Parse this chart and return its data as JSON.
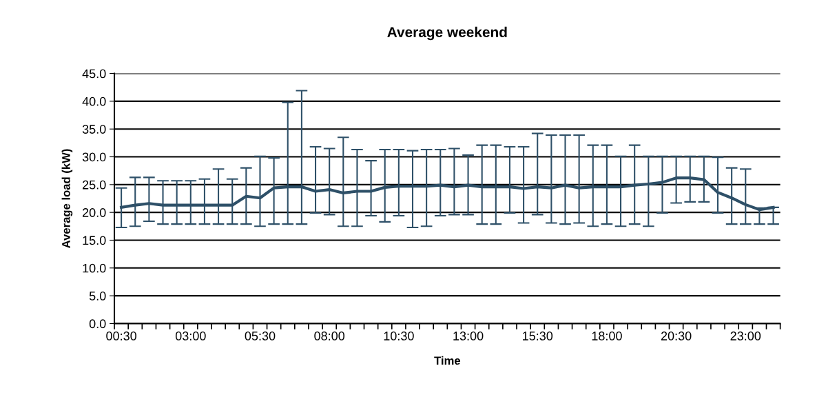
{
  "chart_data": {
    "type": "line",
    "title": "Average weekend",
    "xlabel": "Time",
    "ylabel": "Average load (kW)",
    "categories": [
      "00:30",
      null,
      null,
      null,
      null,
      "03:00",
      null,
      null,
      null,
      null,
      "05:30",
      null,
      null,
      null,
      null,
      "08:00",
      null,
      null,
      null,
      null,
      "10:30",
      null,
      null,
      null,
      null,
      "13:00",
      null,
      null,
      null,
      null,
      "15:30",
      null,
      null,
      null,
      null,
      "18:00",
      null,
      null,
      null,
      null,
      "20:30",
      null,
      null,
      null,
      null,
      "23:00",
      null,
      null
    ],
    "series": [
      {
        "color": "#2e5068",
        "values": [
          20.9,
          21.3,
          21.6,
          21.3,
          21.3,
          21.3,
          21.3,
          21.3,
          21.3,
          22.9,
          22.6,
          24.4,
          24.6,
          24.6,
          23.8,
          24.1,
          23.5,
          23.8,
          23.8,
          24.5,
          24.7,
          24.7,
          24.7,
          24.9,
          24.6,
          24.9,
          24.6,
          24.6,
          24.6,
          24.3,
          24.6,
          24.4,
          24.9,
          24.4,
          24.6,
          24.6,
          24.6,
          24.9,
          25.1,
          25.4,
          26.2,
          26.2,
          25.9,
          23.6,
          22.6,
          21.4,
          20.5,
          20.9
        ],
        "errors": [
          [
            17.3,
            24.4
          ],
          [
            17.5,
            26.3
          ],
          [
            18.4,
            26.3
          ],
          [
            17.9,
            25.7
          ],
          [
            17.9,
            25.7
          ],
          [
            17.9,
            25.7
          ],
          [
            17.9,
            26.0
          ],
          [
            17.9,
            27.8
          ],
          [
            17.9,
            26.0
          ],
          [
            17.9,
            28.0
          ],
          [
            17.5,
            30.1
          ],
          [
            17.9,
            29.8
          ],
          [
            17.9,
            39.8
          ],
          [
            17.9,
            41.9
          ],
          [
            19.9,
            31.8
          ],
          [
            19.6,
            31.5
          ],
          [
            17.5,
            33.5
          ],
          [
            17.5,
            31.3
          ],
          [
            19.4,
            29.3
          ],
          [
            18.3,
            31.3
          ],
          [
            19.4,
            31.3
          ],
          [
            17.3,
            31.1
          ],
          [
            17.5,
            31.3
          ],
          [
            19.4,
            31.3
          ],
          [
            19.6,
            31.5
          ],
          [
            19.6,
            30.3
          ],
          [
            17.9,
            32.1
          ],
          [
            17.9,
            32.1
          ],
          [
            19.9,
            31.8
          ],
          [
            18.1,
            31.8
          ],
          [
            19.6,
            34.2
          ],
          [
            18.1,
            33.9
          ],
          [
            17.9,
            33.9
          ],
          [
            18.1,
            33.9
          ],
          [
            17.5,
            32.1
          ],
          [
            17.9,
            32.1
          ],
          [
            17.5,
            30.1
          ],
          [
            17.9,
            32.1
          ],
          [
            17.5,
            30.1
          ],
          [
            19.9,
            30.1
          ],
          [
            21.7,
            30.1
          ],
          [
            21.9,
            30.1
          ],
          [
            21.9,
            30.1
          ],
          [
            19.9,
            29.9
          ],
          [
            17.9,
            28.0
          ],
          [
            17.9,
            27.8
          ],
          [
            17.9,
            20.8
          ],
          [
            17.9,
            20.9
          ]
        ]
      }
    ],
    "ylim": [
      0,
      45
    ],
    "yticks": [
      {
        "value": 0,
        "label": "0.0"
      },
      {
        "value": 5,
        "label": "5.0"
      },
      {
        "value": 10,
        "label": "10.0"
      },
      {
        "value": 15,
        "label": "15.0"
      },
      {
        "value": 20,
        "label": "20.0"
      },
      {
        "value": 25,
        "label": "25.0"
      },
      {
        "value": 30,
        "label": "30.0"
      },
      {
        "value": 35,
        "label": "35.0"
      },
      {
        "value": 40,
        "label": "40.0"
      },
      {
        "value": 45,
        "label": "45.0"
      }
    ],
    "grid": "y",
    "marker": "none",
    "line_style": "solid"
  }
}
